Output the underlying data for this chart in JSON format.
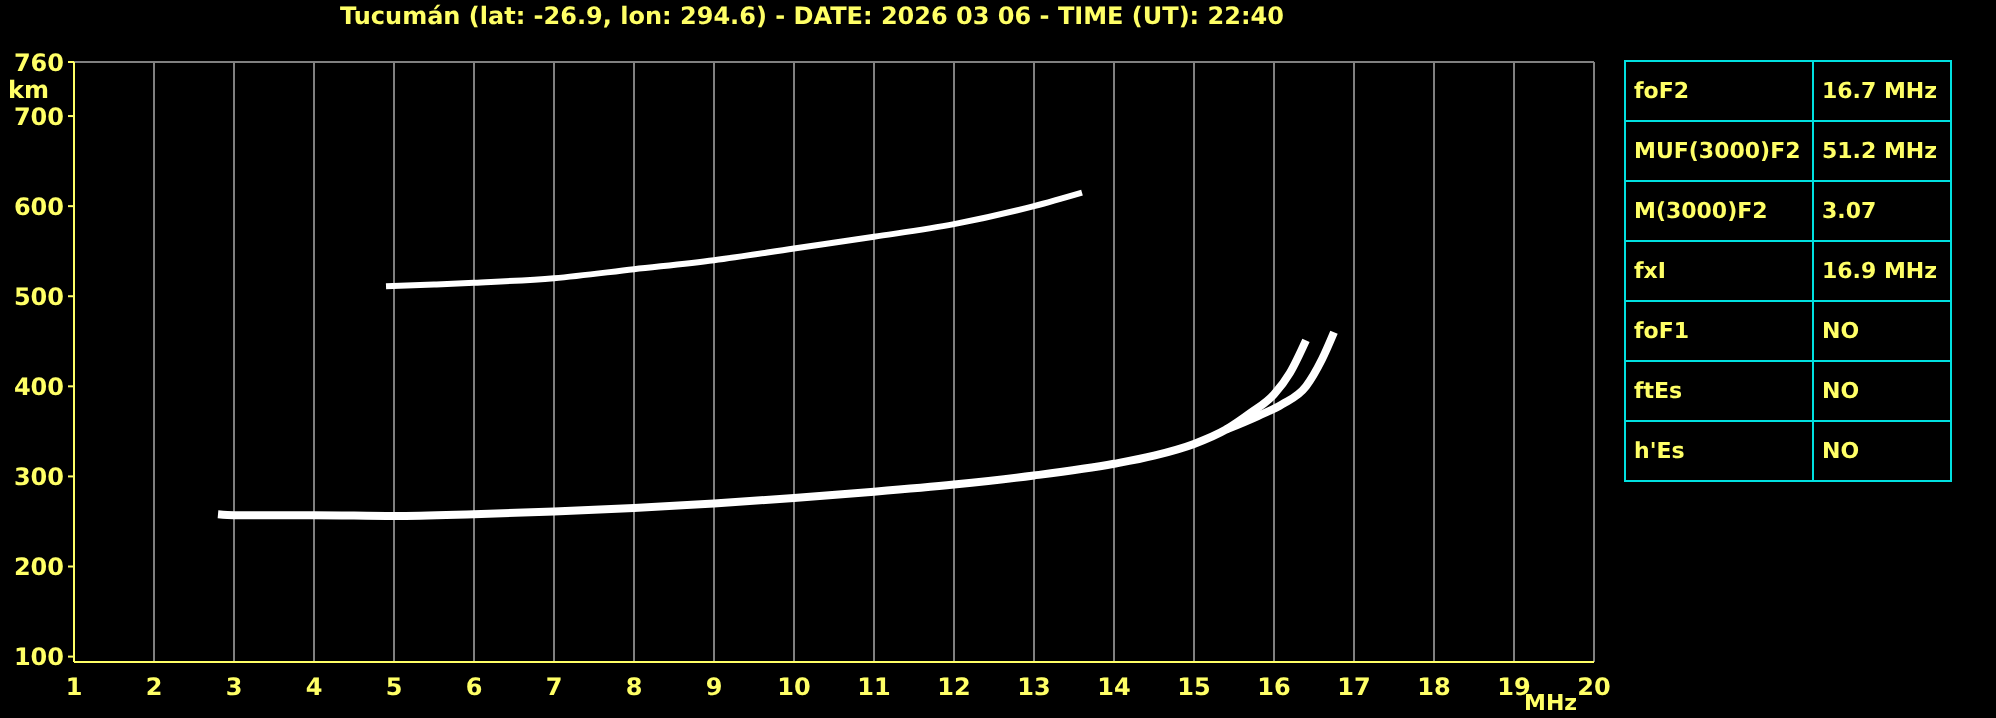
{
  "chart_data": [
    {
      "type": "line",
      "title": "Tucumán (lat: -26.9, lon: 294.6) - DATE: 2026 03 06 - TIME (UT): 22:40",
      "xlabel": "MHz",
      "ylabel": "km",
      "xlim": [
        1,
        20
      ],
      "xticks": [
        1,
        2,
        3,
        4,
        5,
        6,
        7,
        8,
        9,
        10,
        11,
        12,
        13,
        14,
        15,
        16,
        17,
        18,
        19,
        20
      ],
      "ylim": [
        94,
        760
      ],
      "yticks": [
        100,
        200,
        300,
        400,
        500,
        600,
        700,
        760
      ],
      "grid": true,
      "marker": "none",
      "line_style": "solid",
      "series": [
        {
          "color": "#ffffff",
          "x": [
            2.8,
            3,
            4,
            5,
            6,
            7,
            8,
            9,
            10,
            11,
            12,
            13,
            14,
            14.5,
            15,
            15.4,
            15.7,
            16,
            16.2,
            16.4
          ],
          "values": [
            258,
            257,
            257,
            256,
            258,
            261,
            265,
            270,
            276,
            283,
            291,
            301,
            314,
            323,
            336,
            352,
            370,
            391,
            415,
            451
          ]
        },
        {
          "color": "#ffffff",
          "x": [
            15.4,
            15.8,
            16.1,
            16.4,
            16.6,
            16.75
          ],
          "values": [
            352,
            367,
            380,
            400,
            430,
            460
          ]
        },
        {
          "color": "#ffffff",
          "x": [
            4.9,
            5.5,
            6,
            7,
            8,
            9,
            10,
            11,
            12,
            13,
            13.6
          ],
          "values": [
            511,
            513,
            515,
            520,
            530,
            540,
            553,
            566,
            580,
            600,
            615
          ]
        }
      ]
    },
    {
      "type": "other",
      "annotations": [
        "foF2",
        "16.7 MHz",
        "MUF(3000)F2",
        "51.2 MHz",
        "M(3000)F2",
        "3.07",
        "fxI",
        "16.9 MHz",
        "foF1",
        "NO",
        "ftEs",
        "NO",
        "h'Es",
        "NO"
      ]
    }
  ]
}
